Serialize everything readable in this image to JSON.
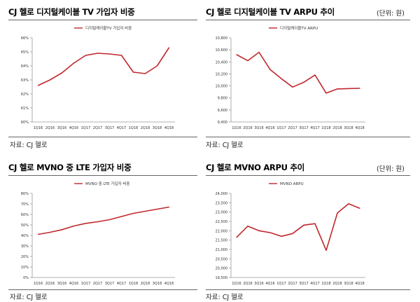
{
  "colors": {
    "line": "#c0282d",
    "axis": "#999999",
    "rule": "#666666"
  },
  "panels": [
    {
      "title": "CJ 헬로 디지털케이블 TV 가입자 비중",
      "unit": "",
      "source": "자료: CJ 헬로",
      "chart_data": {
        "type": "line",
        "categories": [
          "1Q16",
          "2Q16",
          "3Q16",
          "4Q16",
          "1Q17",
          "2Q17",
          "3Q17",
          "4Q17",
          "1Q18",
          "2Q18",
          "3Q18",
          "4Q18"
        ],
        "series": [
          {
            "name": "디지털케이블TV 가입자 비중",
            "values": [
              62.6,
              63.0,
              63.5,
              64.2,
              64.75,
              64.9,
              64.85,
              64.75,
              63.55,
              63.45,
              64.0,
              65.3
            ]
          }
        ],
        "ylim": [
          60,
          66
        ],
        "yticks": [
          60,
          61,
          62,
          63,
          64,
          65,
          66
        ],
        "ytick_labels": [
          "60%",
          "61%",
          "62%",
          "63%",
          "64%",
          "65%",
          "66%"
        ],
        "legend": "top-center"
      }
    },
    {
      "title": "CJ 헬로 디지털케이블 TV ARPU 추이",
      "unit": "(단위: 원)",
      "source": "자료: CJ 헬로",
      "chart_data": {
        "type": "line",
        "categories": [
          "1Q16",
          "2Q16",
          "3Q16",
          "4Q16",
          "1Q17",
          "2Q17",
          "3Q17",
          "4Q17",
          "1Q18",
          "2Q18",
          "3Q18",
          "4Q18"
        ],
        "series": [
          {
            "name": "디지털케이블TV ARPU",
            "values": [
              10520,
              10420,
              10560,
              10270,
              10120,
              9980,
              10060,
              10180,
              9880,
              9950,
              9955,
              9960
            ]
          }
        ],
        "ylim": [
          9400,
          10800
        ],
        "yticks": [
          9400,
          9600,
          9800,
          10000,
          10200,
          10400,
          10600,
          10800
        ],
        "ytick_labels": [
          "9,400",
          "9,600",
          "9,800",
          "10,000",
          "10,200",
          "10,400",
          "10,600",
          "10,800"
        ],
        "legend": "top-center"
      }
    },
    {
      "title": "CJ 헬로 MVNO 중 LTE 가입자 비중",
      "unit": "",
      "source": "자료: CJ 헬로",
      "chart_data": {
        "type": "line",
        "categories": [
          "1Q16",
          "2Q16",
          "3Q16",
          "4Q16",
          "1Q17",
          "2Q17",
          "3Q17",
          "4Q17",
          "1Q18",
          "2Q18",
          "3Q18",
          "4Q18"
        ],
        "series": [
          {
            "name": "MVNO 중 LTE 가입자 비중",
            "values": [
              41,
              43,
              45.5,
              49,
              51.5,
              53,
              55,
              58,
              61,
              63,
              65,
              67
            ]
          }
        ],
        "ylim": [
          0,
          80
        ],
        "yticks": [
          0,
          10,
          20,
          30,
          40,
          50,
          60,
          70,
          80
        ],
        "ytick_labels": [
          "0%",
          "10%",
          "20%",
          "30%",
          "40%",
          "50%",
          "60%",
          "70%",
          "80%"
        ],
        "legend": "top-center"
      }
    },
    {
      "title": "CJ 헬로 MVNO ARPU 추이",
      "unit": "(단위: 원)",
      "source": "자료: CJ 헬로",
      "chart_data": {
        "type": "line",
        "categories": [
          "1Q16",
          "2Q16",
          "3Q16",
          "4Q16",
          "1Q17",
          "2Q17",
          "3Q17",
          "4Q17",
          "1Q18",
          "2Q18",
          "3Q18",
          "4Q18"
        ],
        "series": [
          {
            "name": "MVNO ARPU",
            "values": [
              21650,
              22250,
              22000,
              21900,
              21700,
              21850,
              22300,
              22380,
              20950,
              22950,
              23450,
              23200
            ]
          }
        ],
        "ylim": [
          19500,
          24000
        ],
        "yticks": [
          19500,
          20000,
          20500,
          21000,
          21500,
          22000,
          22500,
          23000,
          23500,
          24000
        ],
        "ytick_labels": [
          "19,500",
          "20,000",
          "20,500",
          "21,000",
          "21,500",
          "22,000",
          "22,500",
          "23,000",
          "23,500",
          "24,000"
        ],
        "legend": "top-center"
      }
    }
  ]
}
